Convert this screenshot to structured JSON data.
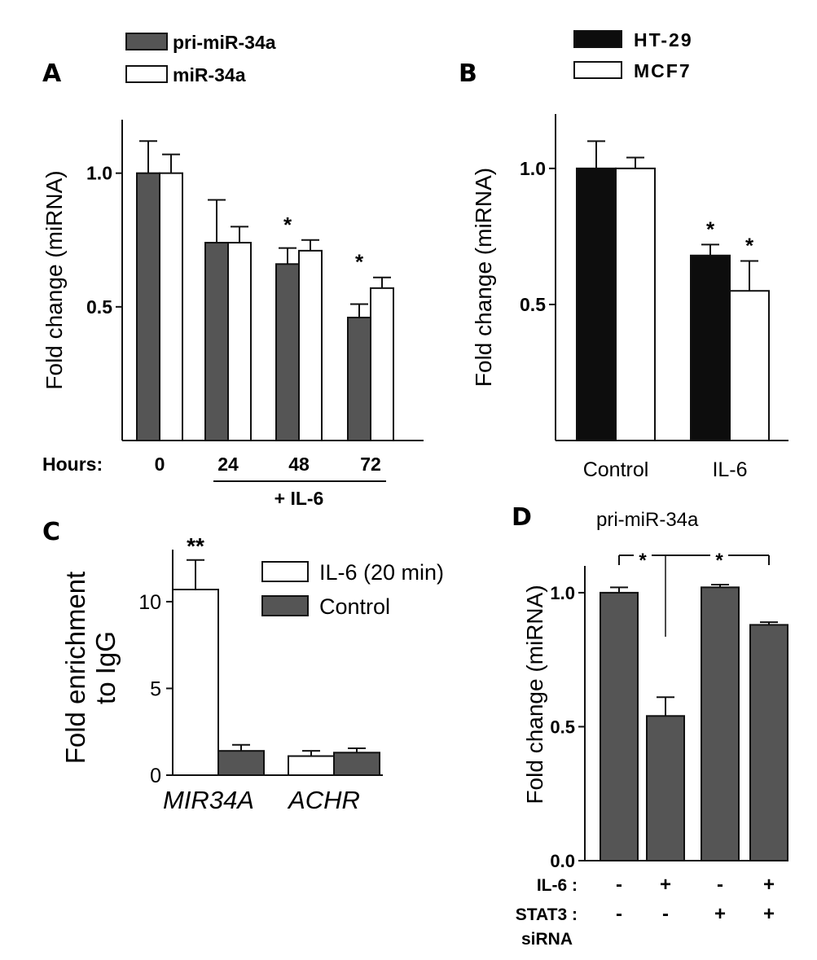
{
  "colors": {
    "dark": "#555555",
    "black": "#0d0d0d",
    "white": "#ffffff",
    "axis": "#111111"
  },
  "chart_data": [
    {
      "panel": "A",
      "type": "bar",
      "ylabel": "Fold change (miRNA)",
      "xprefix": "Hours:",
      "categories": [
        "0",
        "24",
        "48",
        "72"
      ],
      "bracket_label": "+ IL-6",
      "ylim": [
        0,
        1.2
      ],
      "yticks": [
        {
          "v": 0.5,
          "t": "0.5"
        },
        {
          "v": 1.0,
          "t": "1.0"
        }
      ],
      "series": [
        {
          "name": "pri-miR-34a",
          "color": "#555555",
          "values": [
            1.0,
            0.74,
            0.66,
            0.46
          ],
          "errors": [
            0.12,
            0.16,
            0.06,
            0.05
          ]
        },
        {
          "name": "miR-34a",
          "color": "#ffffff",
          "values": [
            1.0,
            0.74,
            0.71,
            0.57
          ],
          "errors": [
            0.07,
            0.06,
            0.04,
            0.04
          ]
        }
      ],
      "stars": [
        "",
        "",
        "*",
        "*"
      ]
    },
    {
      "panel": "B",
      "type": "bar",
      "ylabel": "Fold change (miRNA)",
      "categories": [
        "Control",
        "IL-6"
      ],
      "ylim": [
        0,
        1.2
      ],
      "yticks": [
        {
          "v": 0.5,
          "t": "0.5"
        },
        {
          "v": 1.0,
          "t": "1.0"
        }
      ],
      "series": [
        {
          "name": "HT-29",
          "color": "#0d0d0d",
          "values": [
            1.0,
            0.68
          ],
          "errors": [
            0.1,
            0.04
          ]
        },
        {
          "name": "MCF7",
          "color": "#ffffff",
          "values": [
            1.0,
            0.55
          ],
          "errors": [
            0.04,
            0.11
          ]
        }
      ],
      "stars": [
        [
          "",
          ""
        ],
        [
          "*",
          "*"
        ]
      ]
    },
    {
      "panel": "C",
      "type": "bar",
      "ylabel_lines": [
        "Fold enrichment",
        "to IgG"
      ],
      "categories": [
        "MIR34A",
        "ACHR"
      ],
      "ylim": [
        0,
        13
      ],
      "yticks": [
        {
          "v": 0,
          "t": "0"
        },
        {
          "v": 5,
          "t": "5"
        },
        {
          "v": 10,
          "t": "10"
        }
      ],
      "series": [
        {
          "name": "IL-6 (20 min)",
          "color": "#ffffff",
          "values": [
            10.7,
            1.1
          ],
          "errors": [
            1.7,
            0.3
          ]
        },
        {
          "name": "Control",
          "color": "#555555",
          "values": [
            1.4,
            1.3
          ],
          "errors": [
            0.35,
            0.25
          ]
        }
      ],
      "stars": [
        "**",
        ""
      ]
    },
    {
      "panel": "D",
      "type": "bar",
      "title": "pri-miR-34a",
      "ylabel": "Fold change (miRNA)",
      "ylim": [
        0,
        1.1
      ],
      "yticks": [
        {
          "v": 0.0,
          "t": "0.0"
        },
        {
          "v": 0.5,
          "t": "0.5"
        },
        {
          "v": 1.0,
          "t": "1.0"
        }
      ],
      "values": [
        1.0,
        0.54,
        1.02,
        0.88
      ],
      "errors": [
        0.02,
        0.07,
        0.01,
        0.01
      ],
      "color": "#555555",
      "rows": [
        {
          "label": "IL-6 :",
          "marks": [
            "-",
            "+",
            "-",
            "+"
          ]
        },
        {
          "label": "STAT3 :",
          "label2": "siRNA",
          "marks": [
            "-",
            "-",
            "+",
            "+"
          ]
        }
      ],
      "sig_marks": [
        "*",
        "*"
      ]
    }
  ]
}
